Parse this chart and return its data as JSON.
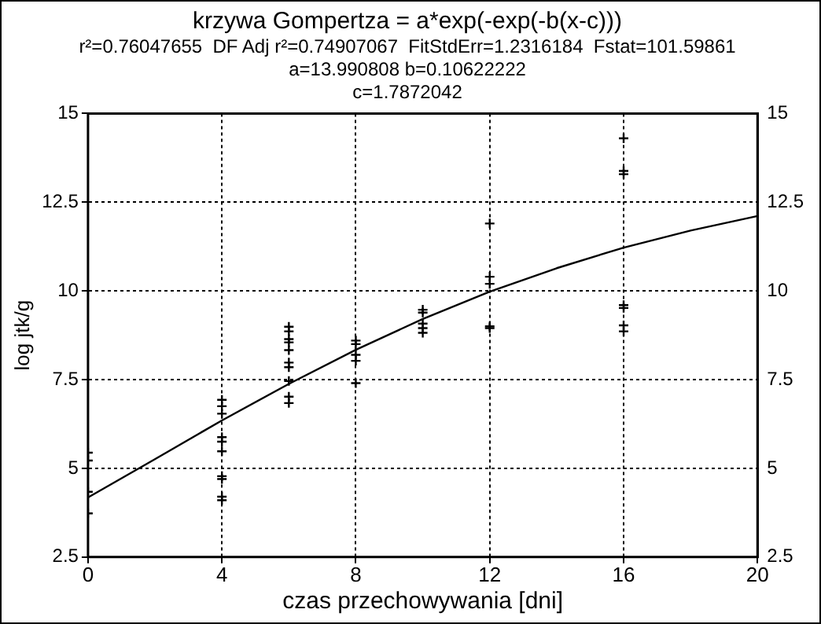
{
  "chart_data": {
    "type": "scatter",
    "title": "krzywa Gompertza = a*exp(-exp(-b(x-c)))",
    "subtitle": "r²=0.76047655  DF Adj r²=0.74907067  FitStdErr=1.2316184  Fstat=101.59861\na=13.990808 b=0.10622222\nc=1.7872042",
    "xlabel": "czas przechowywania [dni]",
    "ylabel": "log jtk/g",
    "series": [
      {
        "color": "#000000",
        "marker": "cross",
        "x": [
          0,
          0,
          0,
          0,
          4,
          4,
          4,
          4,
          4,
          4,
          4,
          4,
          4,
          4,
          6,
          6,
          6,
          6,
          6,
          6,
          6,
          6,
          6,
          6,
          8,
          8,
          8,
          8,
          8,
          10,
          10,
          10,
          10,
          10,
          12,
          12,
          12,
          12,
          12,
          16,
          16,
          16,
          16,
          16,
          16,
          16
        ],
        "values": [
          5.44,
          5.22,
          4.34,
          3.73,
          6.93,
          6.75,
          6.54,
          5.88,
          5.75,
          5.48,
          4.78,
          4.7,
          4.2,
          4.1,
          8.99,
          8.86,
          8.64,
          8.55,
          8.33,
          7.98,
          7.85,
          7.46,
          7.02,
          6.84,
          8.6,
          8.5,
          8.2,
          8.03,
          7.4,
          9.47,
          9.39,
          9.08,
          8.95,
          8.82,
          11.9,
          10.4,
          10.2,
          9.0,
          8.95,
          14.3,
          13.38,
          13.29,
          9.6,
          9.52,
          9.03,
          8.86
        ]
      },
      {
        "type": "line",
        "color": "#000000",
        "marker": "none",
        "x": [
          0,
          2,
          4,
          6,
          8,
          10,
          12,
          14,
          16,
          18,
          20
        ],
        "values": [
          4.18,
          5.26,
          6.35,
          7.38,
          8.34,
          9.21,
          9.98,
          10.64,
          11.22,
          11.7,
          12.11
        ]
      }
    ],
    "xlim": [
      0,
      20
    ],
    "xticks": [
      0,
      4,
      8,
      12,
      16,
      20
    ],
    "ylim": [
      2.5,
      15
    ],
    "yticks": [
      2.5,
      5,
      7.5,
      10,
      12.5,
      15
    ],
    "y2lim": [
      2.5,
      15
    ],
    "y2ticks": [
      2.5,
      5,
      7.5,
      10,
      12.5,
      15
    ],
    "grid": true,
    "legend": false
  }
}
